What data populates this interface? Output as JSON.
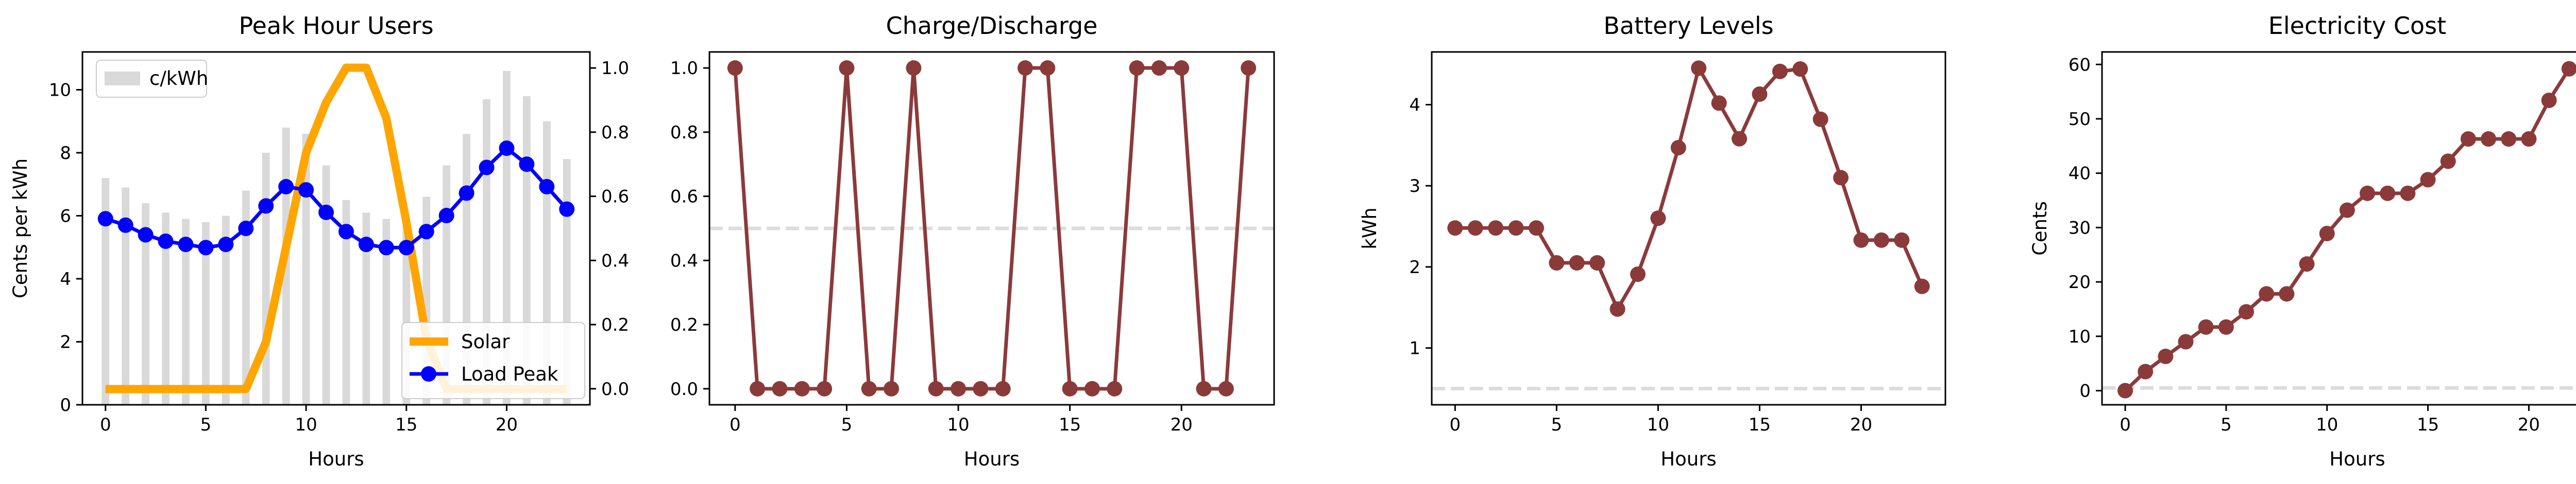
{
  "chart_data": [
    {
      "type": "line",
      "title": "Peak Hour Users",
      "xlabel": "Hours",
      "ylabel": "Cents per kWh",
      "xlim": [
        -1.15,
        24.15
      ],
      "ylim": [
        0,
        11.2
      ],
      "y2lim": [
        -0.05,
        1.05
      ],
      "x_ticks": [
        0,
        5,
        10,
        15,
        20
      ],
      "y_ticks": [
        0,
        2,
        4,
        6,
        8,
        10
      ],
      "y2_ticks": [
        0.0,
        0.2,
        0.4,
        0.6,
        0.8,
        1.0
      ],
      "x_tick_labels": [
        "0",
        "5",
        "10",
        "15",
        "20"
      ],
      "y_tick_labels": [
        "0",
        "2",
        "4",
        "6",
        "8",
        "10"
      ],
      "y2_tick_labels": [
        "0.0",
        "0.2",
        "0.4",
        "0.6",
        "0.8",
        "1.0"
      ],
      "x": [
        0,
        1,
        2,
        3,
        4,
        5,
        6,
        7,
        8,
        9,
        10,
        11,
        12,
        13,
        14,
        15,
        16,
        17,
        18,
        19,
        20,
        21,
        22,
        23
      ],
      "bar_series": {
        "name": "c/kWh",
        "color": "#d9d9d9",
        "axis": "left",
        "values": [
          7.2,
          6.9,
          6.4,
          6.1,
          5.9,
          5.8,
          6.0,
          6.8,
          8.0,
          8.8,
          8.6,
          7.6,
          6.5,
          6.1,
          5.9,
          5.8,
          6.6,
          7.6,
          8.6,
          9.7,
          10.6,
          9.8,
          9.0,
          7.8
        ]
      },
      "series": [
        {
          "name": "Solar",
          "color": "#ffa500",
          "axis": "left",
          "values": [
            0.5,
            0.5,
            0.5,
            0.5,
            0.5,
            0.5,
            0.5,
            0.5,
            2.0,
            5.0,
            8.0,
            9.6,
            10.7,
            10.7,
            9.1,
            5.8,
            2.1,
            0.5,
            0.5,
            0.5,
            0.5,
            0.5,
            0.5,
            0.5
          ]
        },
        {
          "name": "Load Peak",
          "color": "#0000ff",
          "axis": "right",
          "values": [
            0.53,
            0.51,
            0.48,
            0.46,
            0.45,
            0.44,
            0.45,
            0.5,
            0.57,
            0.63,
            0.62,
            0.55,
            0.49,
            0.45,
            0.44,
            0.44,
            0.49,
            0.54,
            0.61,
            0.69,
            0.75,
            0.7,
            0.63,
            0.56
          ]
        }
      ],
      "legend": [
        {
          "label": "c/kWh",
          "placement": "upper-left"
        },
        {
          "label": "Solar",
          "placement": "lower-right"
        },
        {
          "label": "Load Peak",
          "placement": "lower-right"
        }
      ]
    },
    {
      "type": "line",
      "title": "Charge/Discharge",
      "xlabel": "Hours",
      "ylabel": "",
      "xlim": [
        -1.15,
        24.15
      ],
      "ylim": [
        -0.05,
        1.05
      ],
      "x_ticks": [
        0,
        5,
        10,
        15,
        20
      ],
      "y_ticks": [
        0.0,
        0.2,
        0.4,
        0.6,
        0.8,
        1.0
      ],
      "x_tick_labels": [
        "0",
        "5",
        "10",
        "15",
        "20"
      ],
      "y_tick_labels": [
        "0.0",
        "0.2",
        "0.4",
        "0.6",
        "0.8",
        "1.0"
      ],
      "reference_line": 0.5,
      "x": [
        0,
        1,
        2,
        3,
        4,
        5,
        6,
        7,
        8,
        9,
        10,
        11,
        12,
        13,
        14,
        15,
        16,
        17,
        18,
        19,
        20,
        21,
        22,
        23
      ],
      "series": [
        {
          "color": "#8b3a3a",
          "values": [
            1,
            0,
            0,
            0,
            0,
            1,
            0,
            0,
            1,
            0,
            0,
            0,
            0,
            1,
            1,
            0,
            0,
            0,
            1,
            1,
            1,
            0,
            0,
            1
          ]
        }
      ]
    },
    {
      "type": "line",
      "title": "Battery Levels",
      "xlabel": "Hours",
      "ylabel": "kWh",
      "xlim": [
        -1.15,
        24.15
      ],
      "ylim": [
        0.3,
        4.65
      ],
      "x_ticks": [
        0,
        5,
        10,
        15,
        20
      ],
      "y_ticks": [
        1,
        2,
        3,
        4
      ],
      "x_tick_labels": [
        "0",
        "5",
        "10",
        "15",
        "20"
      ],
      "y_tick_labels": [
        "1",
        "2",
        "3",
        "4"
      ],
      "reference_line": 0.5,
      "x": [
        0,
        1,
        2,
        3,
        4,
        5,
        6,
        7,
        8,
        9,
        10,
        11,
        12,
        13,
        14,
        15,
        16,
        17,
        18,
        19,
        20,
        21,
        22,
        23
      ],
      "series": [
        {
          "color": "#8b3a3a",
          "values": [
            2.48,
            2.48,
            2.48,
            2.48,
            2.48,
            2.05,
            2.05,
            2.05,
            1.48,
            1.91,
            2.6,
            3.47,
            4.45,
            4.02,
            3.58,
            4.13,
            4.41,
            4.44,
            3.82,
            3.1,
            2.33,
            2.33,
            2.33,
            1.76
          ]
        }
      ]
    },
    {
      "type": "line",
      "title": "Electricity Cost",
      "xlabel": "Hours",
      "ylabel": "Cents",
      "xlim": [
        -1.15,
        24.15
      ],
      "ylim": [
        -2.6,
        62.3
      ],
      "x_ticks": [
        0,
        5,
        10,
        15,
        20
      ],
      "y_ticks": [
        0,
        10,
        20,
        30,
        40,
        50,
        60
      ],
      "x_tick_labels": [
        "0",
        "5",
        "10",
        "15",
        "20"
      ],
      "y_tick_labels": [
        "0",
        "10",
        "20",
        "30",
        "40",
        "50",
        "60"
      ],
      "reference_line": 0.5,
      "x": [
        0,
        1,
        2,
        3,
        4,
        5,
        6,
        7,
        8,
        9,
        10,
        11,
        12,
        13,
        14,
        15,
        16,
        17,
        18,
        19,
        20,
        21,
        22,
        23
      ],
      "series": [
        {
          "color": "#8b3a3a",
          "values": [
            0,
            3.5,
            6.3,
            9.0,
            11.7,
            11.7,
            14.5,
            17.8,
            17.8,
            23.3,
            28.9,
            33.2,
            36.3,
            36.3,
            36.3,
            38.8,
            42.2,
            46.3,
            46.3,
            46.3,
            46.3,
            53.4,
            59.2,
            59.2
          ]
        }
      ]
    }
  ]
}
